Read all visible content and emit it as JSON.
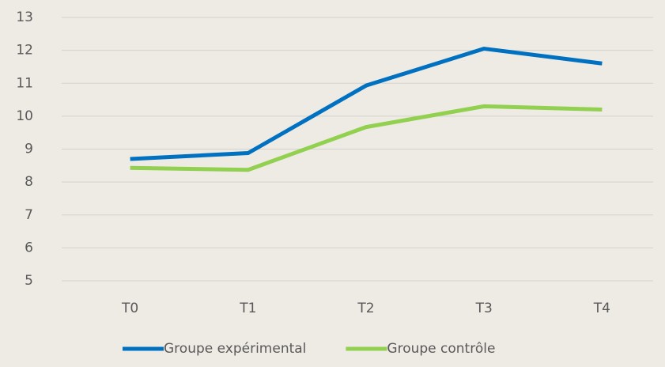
{
  "chart_data": {
    "type": "line",
    "categories": [
      "T0",
      "T1",
      "T2",
      "T3",
      "T4"
    ],
    "series": [
      {
        "name": "Groupe expérimental",
        "color": "#0070c0",
        "values": [
          8.7,
          8.88,
          10.93,
          12.05,
          11.6
        ]
      },
      {
        "name": "Groupe contrôle",
        "color": "#92d050",
        "values": [
          8.43,
          8.37,
          9.67,
          10.3,
          10.2
        ]
      }
    ],
    "ylim": [
      5,
      13
    ],
    "yticks": [
      5,
      6,
      7,
      8,
      9,
      10,
      11,
      12,
      13
    ],
    "grid": true,
    "legend": "bottom"
  }
}
